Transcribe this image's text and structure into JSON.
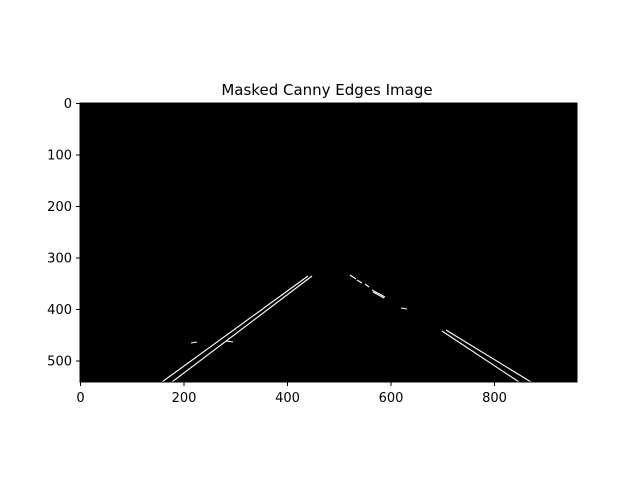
{
  "figure": {
    "title": "Masked Canny Edges Image",
    "background": "#ffffff",
    "image_background": "#000000",
    "edge_color": "#ffffff",
    "y_ticks": [
      "0",
      "100",
      "200",
      "300",
      "400",
      "500"
    ],
    "x_ticks": [
      "0",
      "200",
      "400",
      "600",
      "800"
    ]
  }
}
